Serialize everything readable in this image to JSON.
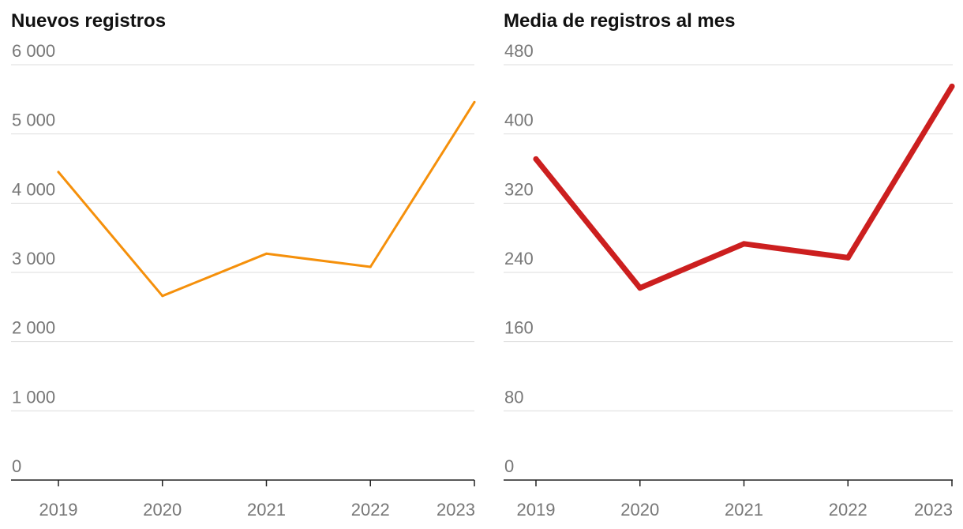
{
  "chart_data": [
    {
      "type": "line",
      "title": "Nuevos registros",
      "categories": [
        "2019",
        "2020",
        "2021",
        "2022",
        "2023"
      ],
      "values": [
        4450,
        2660,
        3270,
        3080,
        5460
      ],
      "yticks": [
        0,
        1000,
        2000,
        3000,
        4000,
        5000,
        6000
      ],
      "ytick_labels": [
        "0",
        "1 000",
        "2 000",
        "3 000",
        "4 000",
        "5 000",
        "6 000"
      ],
      "ylim": [
        0,
        6000
      ],
      "xlabel": "",
      "ylabel": "",
      "grid": true,
      "line_color": "#F5900B"
    },
    {
      "type": "line",
      "title": "Media de registros al mes",
      "categories": [
        "2019",
        "2020",
        "2021",
        "2022",
        "2023"
      ],
      "values": [
        371,
        222,
        273,
        257,
        455
      ],
      "yticks": [
        0,
        80,
        160,
        240,
        320,
        400,
        480
      ],
      "ytick_labels": [
        "0",
        "80",
        "160",
        "240",
        "320",
        "400",
        "480"
      ],
      "ylim": [
        0,
        480
      ],
      "xlabel": "",
      "ylabel": "",
      "grid": true,
      "line_color": "#CC1F1F"
    }
  ]
}
